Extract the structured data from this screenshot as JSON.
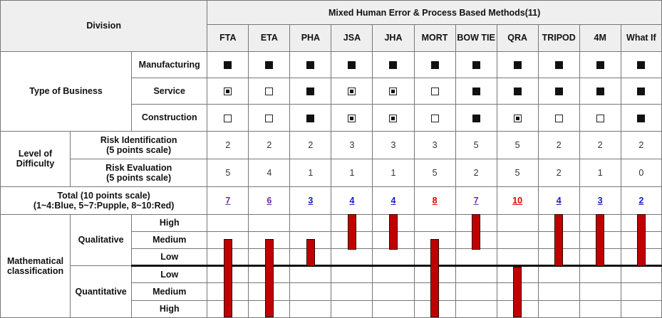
{
  "header": {
    "division": "Division",
    "group_title": "Mixed Human Error & Process Based Methods(11)",
    "methods": [
      "FTA",
      "ETA",
      "PHA",
      "JSA",
      "JHA",
      "MORT",
      "BOW TIE",
      "QRA",
      "TRIPOD",
      "4M",
      "What If"
    ]
  },
  "business": {
    "label": "Type of Business",
    "rows": [
      {
        "name": "Manufacturing",
        "marks": [
          "full",
          "full",
          "full",
          "full",
          "full",
          "full",
          "full",
          "full",
          "full",
          "full",
          "full"
        ]
      },
      {
        "name": "Service",
        "marks": [
          "dot",
          "empty",
          "full",
          "dot",
          "dot",
          "empty",
          "full",
          "full",
          "full",
          "full",
          "full"
        ]
      },
      {
        "name": "Construction",
        "marks": [
          "empty",
          "empty",
          "full",
          "dot",
          "dot",
          "empty",
          "full",
          "dot",
          "empty",
          "empty",
          "full"
        ]
      }
    ]
  },
  "difficulty": {
    "label_line1": "Level of",
    "label_line2": "Difficulty",
    "rows": [
      {
        "line1": "Risk Identification",
        "line2": "(5 points scale)",
        "values": [
          "2",
          "2",
          "2",
          "3",
          "3",
          "3",
          "5",
          "5",
          "2",
          "2",
          "2"
        ]
      },
      {
        "line1": "Risk Evaluation",
        "line2": "(5 points scale)",
        "values": [
          "5",
          "4",
          "1",
          "1",
          "1",
          "5",
          "2",
          "5",
          "2",
          "1",
          "0"
        ]
      }
    ]
  },
  "total": {
    "line1": "Total (10 points scale)",
    "line2": "(1~4:Blue, 5~7:Pupple, 8~10:Red)",
    "values": [
      "7",
      "6",
      "3",
      "4",
      "4",
      "8",
      "7",
      "10",
      "4",
      "3",
      "2"
    ],
    "colors": {
      "blue": "#1a1acc",
      "purple": "#7030a0",
      "red": "#e00000"
    }
  },
  "math": {
    "label_line1": "Mathematical",
    "label_line2": "classification",
    "qualitative": "Qualitative",
    "quantitative": "Quantitative",
    "levels_qual": [
      "High",
      "Medium",
      "Low"
    ],
    "levels_quant": [
      "Low",
      "Medium",
      "High"
    ],
    "bar_color": "#c00000",
    "bars": [
      {
        "method": "FTA",
        "from": "Medium",
        "to": "High"
      },
      {
        "method": "ETA",
        "from": "Medium",
        "to": "High"
      },
      {
        "method": "PHA",
        "from": "Medium",
        "to": "Low"
      },
      {
        "method": "JSA",
        "from": "High",
        "to": "Medium"
      },
      {
        "method": "JHA",
        "from": "High",
        "to": "Medium"
      },
      {
        "method": "MORT",
        "from": "Medium",
        "to": "High"
      },
      {
        "method": "BOW TIE",
        "from": "High",
        "to": "Medium"
      },
      {
        "method": "QRA",
        "from": "Low",
        "to": "High"
      },
      {
        "method": "TRIPOD",
        "from": "High",
        "to": "Low"
      },
      {
        "method": "4M",
        "from": "High",
        "to": "Low"
      },
      {
        "method": "What If",
        "from": "High",
        "to": "Low"
      }
    ]
  }
}
